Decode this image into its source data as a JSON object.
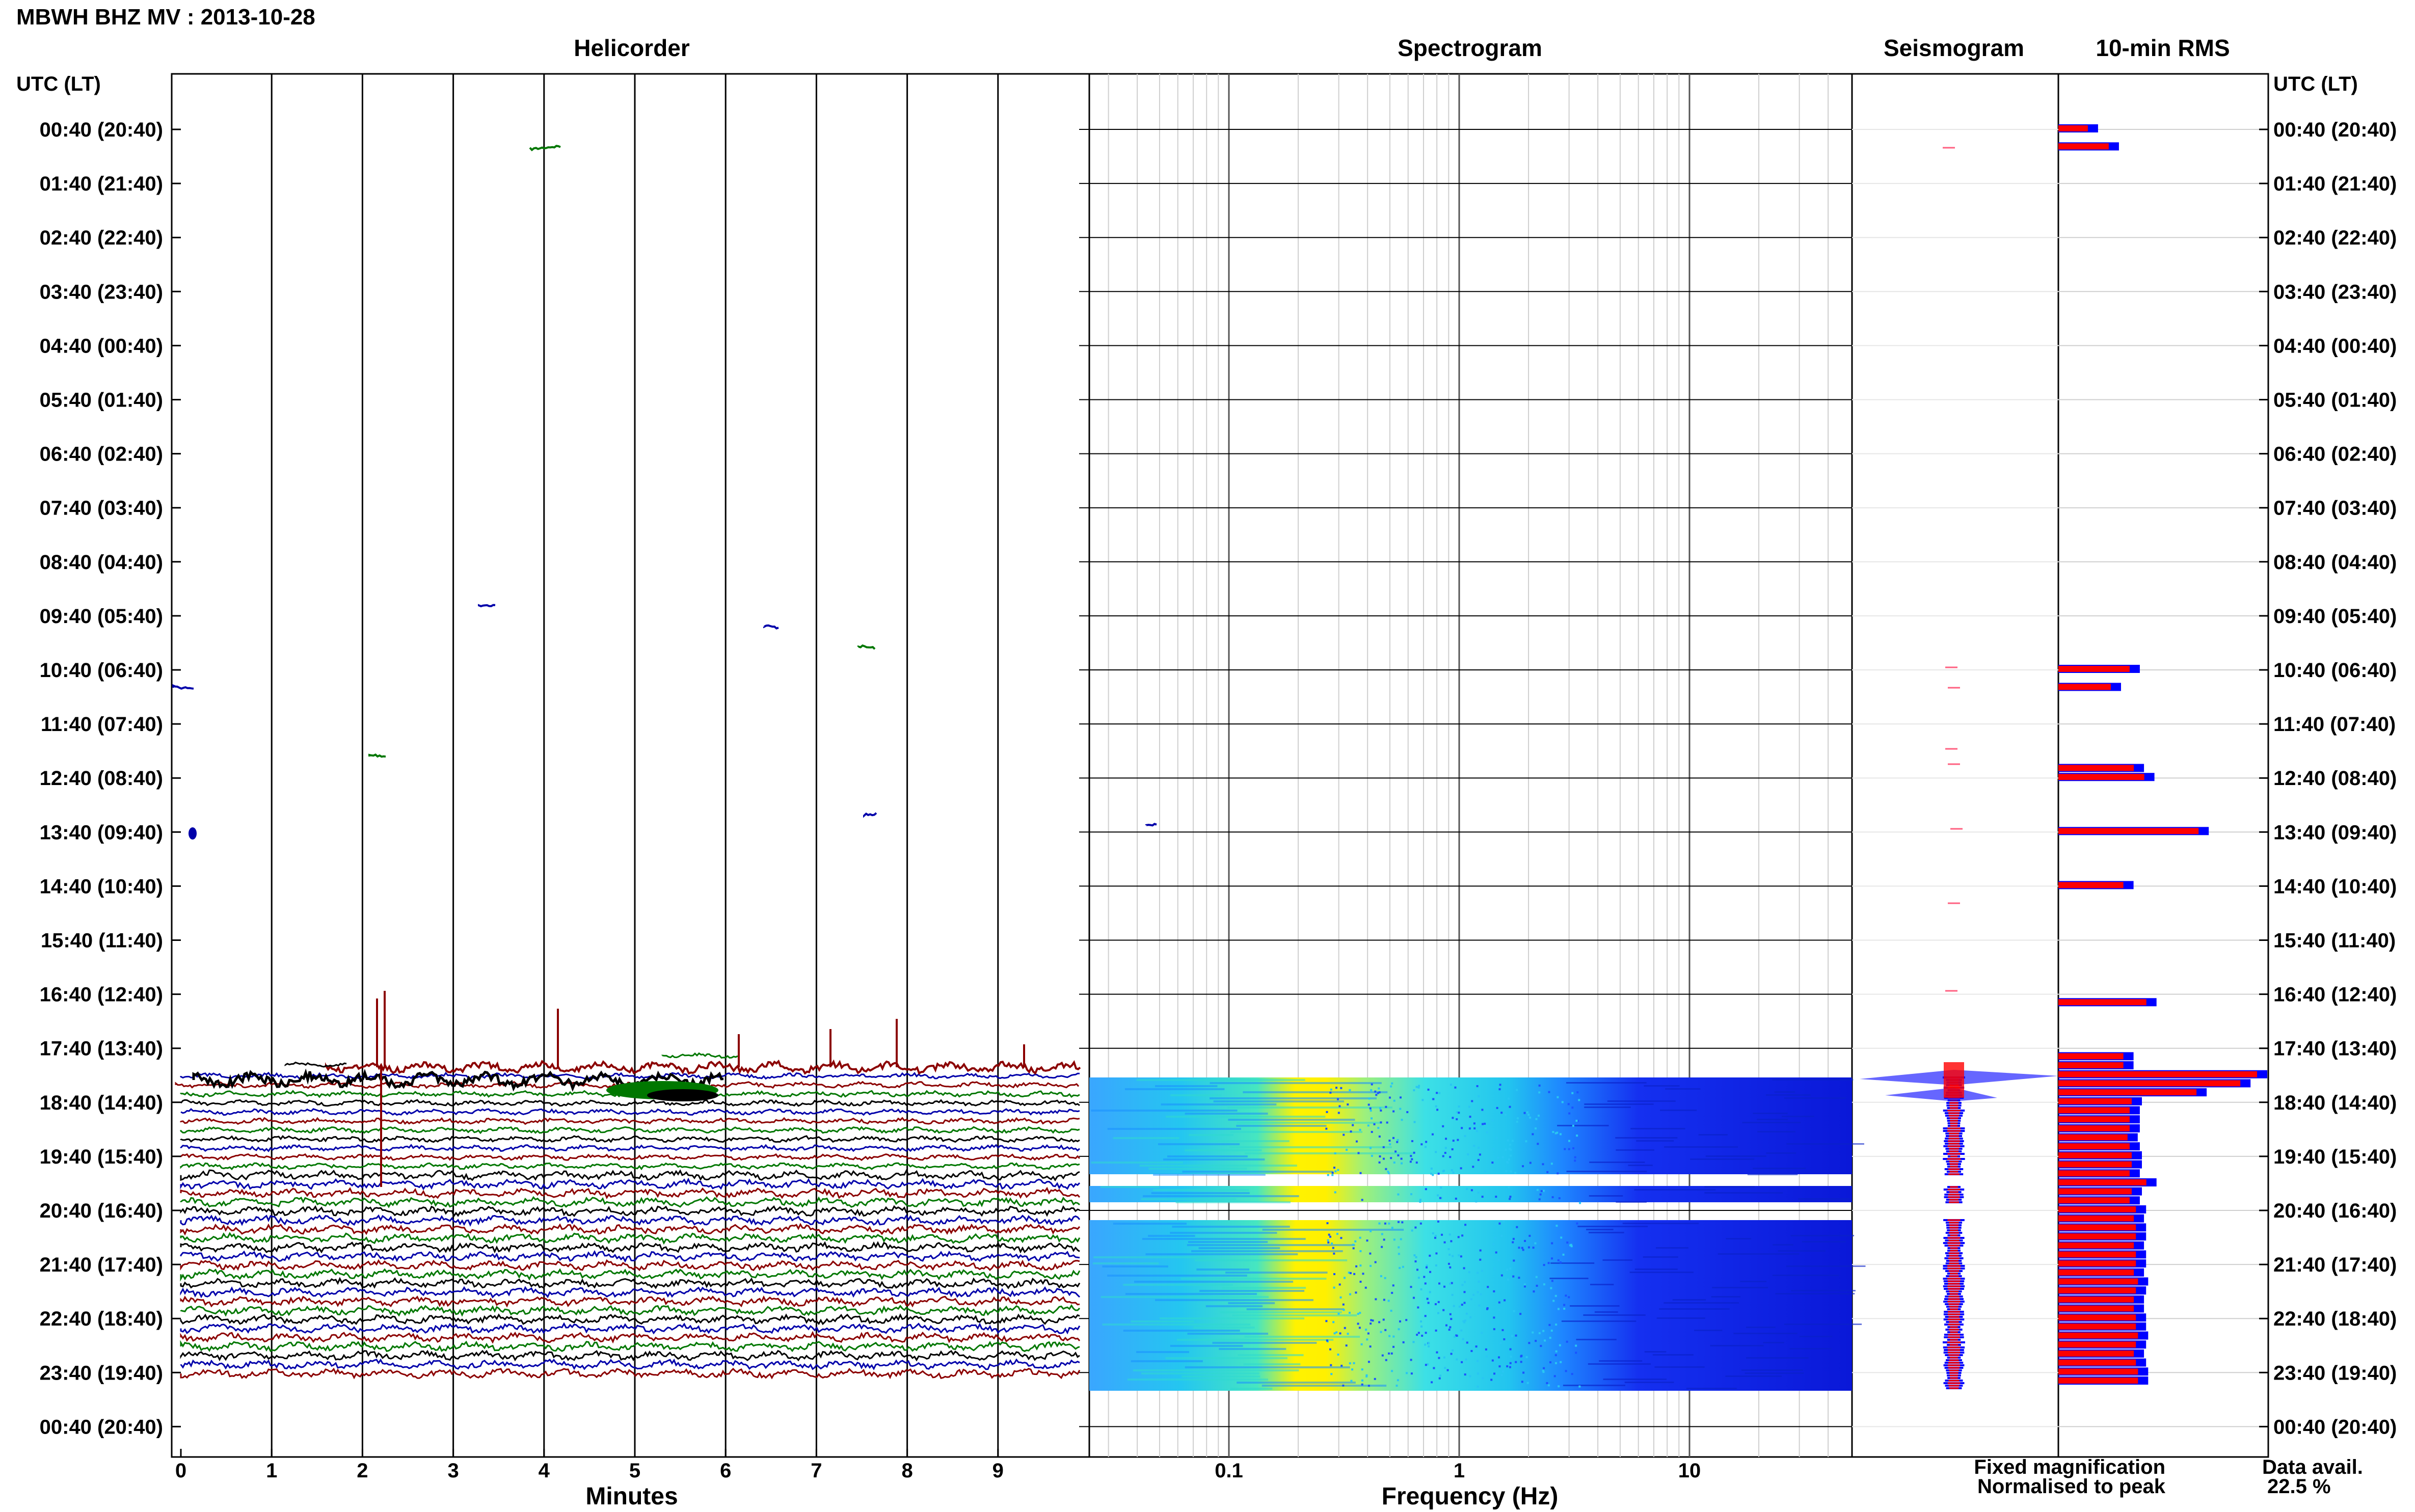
{
  "page_title": "MBWH BHZ MV : 2013-10-28",
  "panels": {
    "helicorder": "Helicorder",
    "spectrogram": "Spectrogram",
    "seismogram": "Seismogram",
    "rms": "10-min RMS"
  },
  "axis_labels": {
    "left_time_header": "UTC (LT)",
    "right_time_header": "UTC (LT)",
    "helicorder_x": "Minutes",
    "spectrogram_x": "Frequency (Hz)"
  },
  "time_ticks": [
    "00:40 (20:40)",
    "01:40 (21:40)",
    "02:40 (22:40)",
    "03:40 (23:40)",
    "04:40 (00:40)",
    "05:40 (01:40)",
    "06:40 (02:40)",
    "07:40 (03:40)",
    "08:40 (04:40)",
    "09:40 (05:40)",
    "10:40 (06:40)",
    "11:40 (07:40)",
    "12:40 (08:40)",
    "13:40 (09:40)",
    "14:40 (10:40)",
    "15:40 (11:40)",
    "16:40 (12:40)",
    "17:40 (13:40)",
    "18:40 (14:40)",
    "19:40 (15:40)",
    "20:40 (16:40)",
    "21:40 (17:40)",
    "22:40 (18:40)",
    "23:40 (19:40)",
    "00:40 (20:40)"
  ],
  "legend": {
    "fixed": "Fixed magnification",
    "normalised": "Normalised to peak",
    "fixed_color": "#0000ff",
    "normalised_color": "#ff0000"
  },
  "availability": {
    "label": "Data avail.",
    "value": "22.5 %"
  },
  "colors": {
    "trace_cycle": [
      "#0000aa",
      "#8b0000",
      "#007700",
      "#000000"
    ],
    "spectrogram_low": "#1e3fff",
    "spectrogram_mid": "#22d4e8",
    "spectrogram_peak": "#ffe600"
  },
  "chart_data": [
    {
      "type": "line",
      "title": "Helicorder",
      "xlabel": "Minutes",
      "x_ticks": [
        0,
        1,
        2,
        3,
        4,
        5,
        6,
        7,
        8,
        9
      ],
      "xlim": [
        0,
        10
      ],
      "data_present_from": "17:40 UTC"
    },
    {
      "type": "heatmap",
      "title": "Spectrogram",
      "xlabel": "Frequency (Hz)",
      "x_scale": "log",
      "x_ticks": [
        "0.1",
        "1",
        "10"
      ],
      "xlim": [
        0.03,
        40
      ],
      "dominant_band_hz": [
        0.2,
        0.35
      ],
      "gaps_utc": [
        "20:10",
        "20:40"
      ]
    },
    {
      "type": "bar",
      "title": "10-min RMS",
      "x_unit": "relative",
      "events": [
        {
          "time": "00:40",
          "value": 0.19
        },
        {
          "time": "01:00",
          "value": 0.29
        },
        {
          "time": "10:40",
          "value": 0.39
        },
        {
          "time": "11:00",
          "value": 0.3
        },
        {
          "time": "12:30",
          "value": 0.41
        },
        {
          "time": "12:40",
          "value": 0.46
        },
        {
          "time": "13:40",
          "value": 0.72
        },
        {
          "time": "14:40",
          "value": 0.36
        },
        {
          "time": "16:50",
          "value": 0.47
        },
        {
          "time": "17:50",
          "value": 0.36
        },
        {
          "time": "18:00",
          "value": 0.36
        },
        {
          "time": "18:10",
          "value": 1.0
        },
        {
          "time": "18:20",
          "value": 0.92
        },
        {
          "time": "18:30",
          "value": 0.71
        },
        {
          "time": "18:40",
          "value": 0.4
        },
        {
          "time": "18:50",
          "value": 0.39
        },
        {
          "time": "19:00",
          "value": 0.39
        },
        {
          "time": "19:10",
          "value": 0.39
        },
        {
          "time": "19:20",
          "value": 0.38
        },
        {
          "time": "19:30",
          "value": 0.39
        },
        {
          "time": "19:40",
          "value": 0.4
        },
        {
          "time": "19:50",
          "value": 0.4
        },
        {
          "time": "20:00",
          "value": 0.39
        },
        {
          "time": "20:10",
          "value": 0.47
        },
        {
          "time": "20:20",
          "value": 0.4
        },
        {
          "time": "20:30",
          "value": 0.39
        },
        {
          "time": "20:40",
          "value": 0.42
        },
        {
          "time": "20:50",
          "value": 0.41
        },
        {
          "time": "21:00",
          "value": 0.42
        },
        {
          "time": "21:10",
          "value": 0.42
        },
        {
          "time": "21:20",
          "value": 0.41
        },
        {
          "time": "21:30",
          "value": 0.42
        },
        {
          "time": "21:40",
          "value": 0.42
        },
        {
          "time": "21:50",
          "value": 0.41
        },
        {
          "time": "22:00",
          "value": 0.43
        },
        {
          "time": "22:10",
          "value": 0.42
        },
        {
          "time": "22:20",
          "value": 0.41
        },
        {
          "time": "22:30",
          "value": 0.41
        },
        {
          "time": "22:40",
          "value": 0.42
        },
        {
          "time": "22:50",
          "value": 0.42
        },
        {
          "time": "23:00",
          "value": 0.43
        },
        {
          "time": "23:10",
          "value": 0.42
        },
        {
          "time": "23:20",
          "value": 0.41
        },
        {
          "time": "23:30",
          "value": 0.42
        },
        {
          "time": "23:40",
          "value": 0.43
        },
        {
          "time": "23:50",
          "value": 0.43
        }
      ]
    }
  ]
}
